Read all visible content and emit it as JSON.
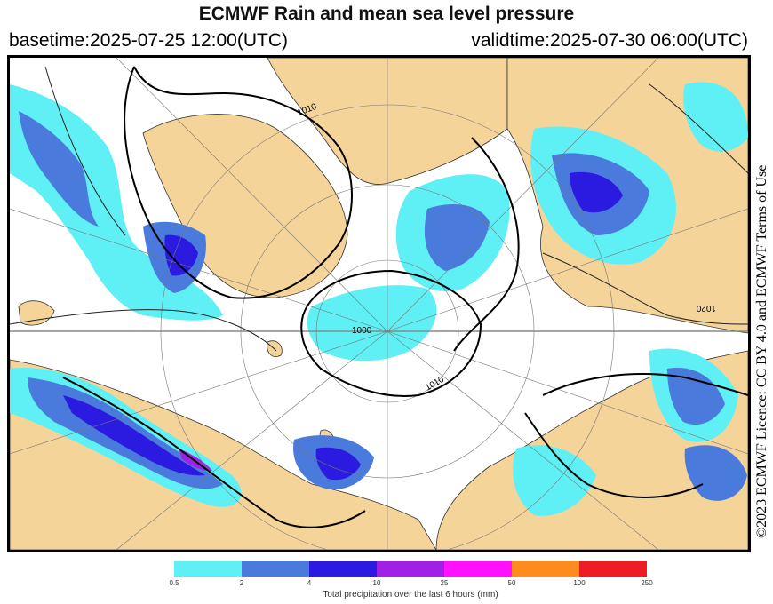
{
  "header": {
    "title": "ECMWF Rain and mean sea level pressure",
    "basetime": "basetime:2025-07-25 12:00(UTC)",
    "validtime": "validtime:2025-07-30 06:00(UTC)"
  },
  "licence": "©2023 ECMWF Licence: CC BY 4.0 and ECMWF Terms of Use",
  "isobar_labels": [
    "1010",
    "1000",
    "1010",
    "1020"
  ],
  "colorbar": {
    "ticks": [
      "0.5",
      "2",
      "4",
      "10",
      "25",
      "50",
      "100",
      "250"
    ],
    "colors": [
      "#5ff0f5",
      "#4a7bdc",
      "#2b1ae0",
      "#a020e6",
      "#ff10ff",
      "#ff8a1e",
      "#ee1c24"
    ],
    "label": "Total precipitation over the last 6 hours (mm)"
  },
  "colors": {
    "land": "#f5d49a",
    "ocean": "#ffffff",
    "rain_light": "#5ff0f5",
    "rain_moderate": "#4a7bdc",
    "rain_heavy": "#2b1ae0",
    "rain_very_heavy": "#a020e6"
  }
}
